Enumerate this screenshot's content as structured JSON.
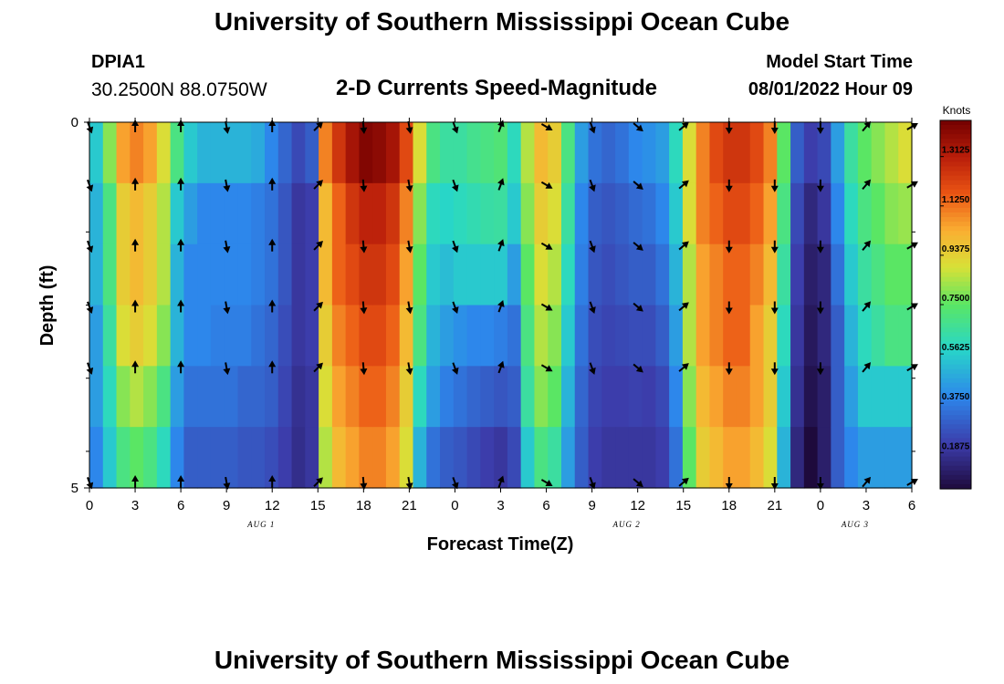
{
  "header": {
    "title": "University of Southern Mississippi Ocean Cube",
    "station_id": "DPIA1",
    "station_coords": "30.2500N  88.0750W",
    "model_start_label": "Model Start Time",
    "model_start_value": "08/01/2022 Hour 09"
  },
  "footer": {
    "title": "University of Southern Mississippi Ocean Cube"
  },
  "chart_data": {
    "type": "heatmap",
    "title": "2-D Currents Speed-Magnitude",
    "xlabel": "Forecast Time(Z)",
    "ylabel": "Depth (ft)",
    "x_tick_labels": [
      "0",
      "3",
      "6",
      "9",
      "12",
      "15",
      "18",
      "21",
      "0",
      "3",
      "6",
      "9",
      "12",
      "15",
      "18",
      "21",
      "0",
      "3",
      "6"
    ],
    "day_labels": [
      {
        "label": "AUG 1",
        "tick_index": 4
      },
      {
        "label": "AUG 2",
        "tick_index": 12
      },
      {
        "label": "AUG 3",
        "tick_index": 17
      }
    ],
    "y_tick_labels": [
      "0",
      "5"
    ],
    "ylim": [
      0,
      5
    ],
    "colorbar": {
      "label": "Knots",
      "ticks": [
        "0.1875",
        "0.3750",
        "0.5625",
        "0.7500",
        "0.9375",
        "1.1250",
        "1.3125"
      ],
      "range": [
        0.05,
        1.45
      ]
    },
    "speed_by_hour_surface_to_bottom": [
      [
        0.55,
        0.5,
        0.5,
        0.45,
        0.45,
        0.4
      ],
      [
        0.8,
        0.7,
        0.7,
        0.65,
        0.6,
        0.55
      ],
      [
        1.05,
        0.95,
        0.95,
        0.9,
        0.8,
        0.7
      ],
      [
        1.1,
        1.0,
        1.0,
        0.95,
        0.85,
        0.75
      ],
      [
        1.05,
        0.95,
        0.95,
        0.9,
        0.8,
        0.7
      ],
      [
        0.9,
        0.85,
        0.85,
        0.8,
        0.7,
        0.6
      ],
      [
        0.7,
        0.55,
        0.5,
        0.5,
        0.45,
        0.4
      ],
      [
        0.55,
        0.45,
        0.4,
        0.4,
        0.35,
        0.3
      ],
      [
        0.5,
        0.4,
        0.4,
        0.4,
        0.35,
        0.3
      ],
      [
        0.5,
        0.4,
        0.4,
        0.38,
        0.35,
        0.3
      ],
      [
        0.5,
        0.4,
        0.4,
        0.38,
        0.35,
        0.3
      ],
      [
        0.5,
        0.4,
        0.4,
        0.38,
        0.32,
        0.28
      ],
      [
        0.48,
        0.38,
        0.38,
        0.35,
        0.32,
        0.28
      ],
      [
        0.4,
        0.35,
        0.35,
        0.32,
        0.3,
        0.26
      ],
      [
        0.32,
        0.28,
        0.28,
        0.26,
        0.24,
        0.22
      ],
      [
        0.25,
        0.2,
        0.2,
        0.2,
        0.18,
        0.17
      ],
      [
        0.3,
        0.22,
        0.22,
        0.22,
        0.2,
        0.2
      ],
      [
        1.1,
        1.0,
        1.0,
        0.95,
        0.9,
        0.85
      ],
      [
        1.25,
        1.15,
        1.15,
        1.1,
        1.05,
        1.0
      ],
      [
        1.35,
        1.25,
        1.2,
        1.15,
        1.1,
        1.05
      ],
      [
        1.42,
        1.3,
        1.25,
        1.2,
        1.15,
        1.1
      ],
      [
        1.4,
        1.3,
        1.25,
        1.2,
        1.15,
        1.1
      ],
      [
        1.35,
        1.25,
        1.2,
        1.15,
        1.1,
        1.05
      ],
      [
        1.2,
        1.1,
        1.05,
        1.0,
        0.95,
        0.9
      ],
      [
        0.9,
        0.8,
        0.75,
        0.7,
        0.6,
        0.5
      ],
      [
        0.7,
        0.6,
        0.55,
        0.5,
        0.45,
        0.35
      ],
      [
        0.65,
        0.58,
        0.52,
        0.45,
        0.38,
        0.3
      ],
      [
        0.65,
        0.6,
        0.55,
        0.42,
        0.35,
        0.28
      ],
      [
        0.68,
        0.62,
        0.55,
        0.4,
        0.32,
        0.25
      ],
      [
        0.7,
        0.64,
        0.55,
        0.4,
        0.3,
        0.22
      ],
      [
        0.72,
        0.65,
        0.55,
        0.38,
        0.28,
        0.2
      ],
      [
        0.6,
        0.55,
        0.45,
        0.35,
        0.3,
        0.25
      ],
      [
        0.85,
        0.8,
        0.75,
        0.7,
        0.65,
        0.55
      ],
      [
        1.0,
        0.95,
        0.9,
        0.85,
        0.8,
        0.7
      ],
      [
        0.95,
        0.9,
        0.85,
        0.8,
        0.75,
        0.65
      ],
      [
        0.7,
        0.65,
        0.6,
        0.55,
        0.5,
        0.45
      ],
      [
        0.45,
        0.4,
        0.38,
        0.35,
        0.32,
        0.3
      ],
      [
        0.35,
        0.3,
        0.28,
        0.26,
        0.24,
        0.22
      ],
      [
        0.32,
        0.28,
        0.26,
        0.24,
        0.22,
        0.2
      ],
      [
        0.35,
        0.3,
        0.28,
        0.25,
        0.22,
        0.2
      ],
      [
        0.4,
        0.33,
        0.3,
        0.26,
        0.23,
        0.2
      ],
      [
        0.42,
        0.35,
        0.3,
        0.26,
        0.22,
        0.2
      ],
      [
        0.45,
        0.4,
        0.35,
        0.3,
        0.25,
        0.22
      ],
      [
        0.6,
        0.55,
        0.5,
        0.45,
        0.4,
        0.35
      ],
      [
        0.9,
        0.9,
        0.85,
        0.85,
        0.8,
        0.75
      ],
      [
        1.1,
        1.1,
        1.05,
        1.05,
        1.0,
        0.95
      ],
      [
        1.2,
        1.15,
        1.1,
        1.1,
        1.05,
        1.0
      ],
      [
        1.25,
        1.2,
        1.15,
        1.15,
        1.1,
        1.05
      ],
      [
        1.25,
        1.2,
        1.15,
        1.15,
        1.1,
        1.05
      ],
      [
        1.2,
        1.15,
        1.1,
        1.05,
        1.05,
        1.0
      ],
      [
        1.1,
        1.05,
        1.0,
        0.95,
        0.95,
        0.9
      ],
      [
        0.75,
        0.7,
        0.65,
        0.6,
        0.55,
        0.5
      ],
      [
        0.3,
        0.25,
        0.22,
        0.2,
        0.18,
        0.15
      ],
      [
        0.22,
        0.15,
        0.12,
        0.1,
        0.08,
        0.05
      ],
      [
        0.25,
        0.2,
        0.15,
        0.15,
        0.12,
        0.12
      ],
      [
        0.45,
        0.4,
        0.35,
        0.3,
        0.3,
        0.3
      ],
      [
        0.65,
        0.6,
        0.55,
        0.5,
        0.45,
        0.4
      ],
      [
        0.75,
        0.7,
        0.65,
        0.6,
        0.55,
        0.45
      ],
      [
        0.8,
        0.75,
        0.7,
        0.65,
        0.55,
        0.45
      ],
      [
        0.85,
        0.8,
        0.75,
        0.7,
        0.55,
        0.45
      ],
      [
        0.9,
        0.82,
        0.75,
        0.7,
        0.55,
        0.45
      ]
    ],
    "arrows": {
      "tick_indices": [
        0,
        1,
        2,
        3,
        4,
        5,
        6,
        7,
        8,
        9,
        10,
        11,
        12,
        13,
        14,
        15,
        16,
        17,
        18
      ],
      "angles_deg_by_tick": [
        160,
        0,
        0,
        170,
        0,
        45,
        175,
        170,
        160,
        20,
        120,
        160,
        130,
        50,
        180,
        180,
        180,
        40,
        60
      ]
    }
  }
}
